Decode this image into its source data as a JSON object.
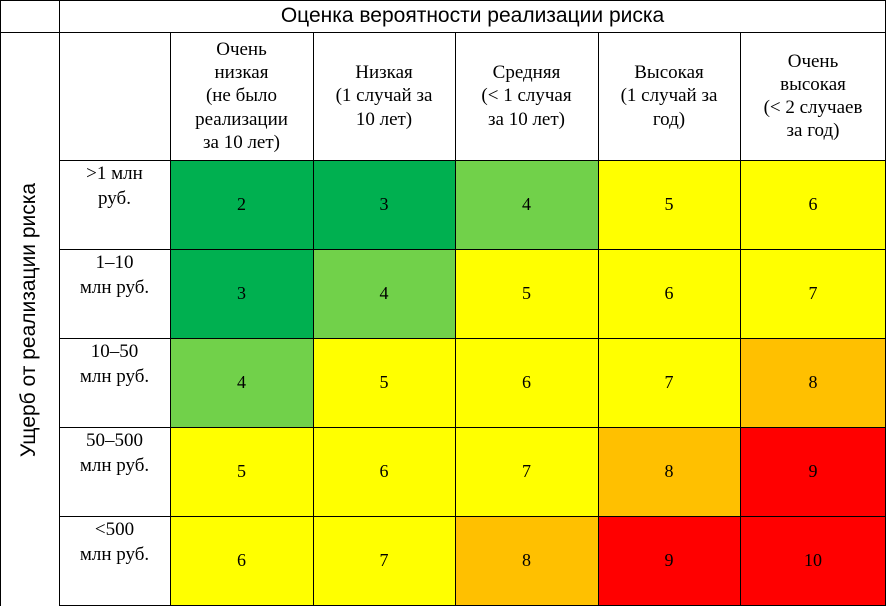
{
  "title": "Оценка вероятности реализации риска",
  "row_axis_label": "Ущерб от реализации риска",
  "columns": [
    {
      "l1": "Очень",
      "l2": "низкая",
      "l3": "(не было",
      "l4": "реализации",
      "l5": "за 10 лет)"
    },
    {
      "l1": "Низкая",
      "l2": "(1 случай за",
      "l3": "10 лет)"
    },
    {
      "l1": "Средняя",
      "l2": "(< 1 случая",
      "l3": "за 10 лет)"
    },
    {
      "l1": "Высокая",
      "l2": "(1 случай за",
      "l3": "год)"
    },
    {
      "l1": "Очень",
      "l2": "высокая",
      "l3": "(< 2 случаев",
      "l4": "за год)"
    }
  ],
  "rows": [
    {
      "l1": ">1 млн",
      "l2": "руб."
    },
    {
      "l1": "1–10",
      "l2": "млн руб."
    },
    {
      "l1": "10–50",
      "l2": "млн руб."
    },
    {
      "l1": "50–500",
      "l2": "млн руб."
    },
    {
      "l1": "<500",
      "l2": "млн руб."
    }
  ],
  "matrix": [
    [
      "2",
      "3",
      "4",
      "5",
      "6"
    ],
    [
      "3",
      "4",
      "5",
      "6",
      "7"
    ],
    [
      "4",
      "5",
      "6",
      "7",
      "8"
    ],
    [
      "5",
      "6",
      "7",
      "8",
      "9"
    ],
    [
      "6",
      "7",
      "8",
      "9",
      "10"
    ]
  ],
  "colors": {
    "2": "#00b050",
    "3": "#00b050",
    "4": "#71d14a",
    "5": "#ffff00",
    "6": "#ffff00",
    "7": "#ffff00",
    "8": "#ffc000",
    "9": "#ff0000",
    "10": "#ff0000"
  }
}
